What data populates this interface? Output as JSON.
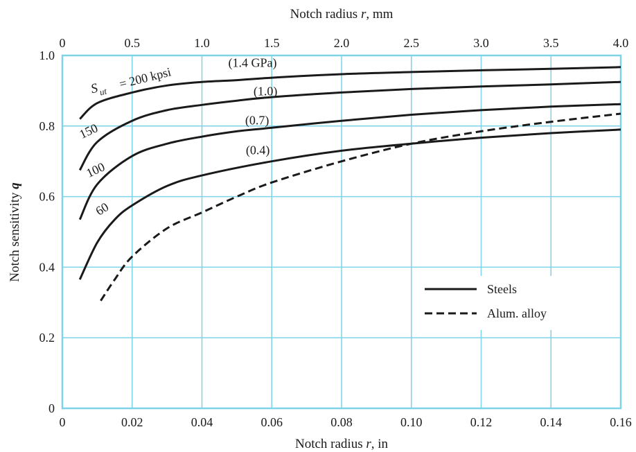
{
  "chart_data": {
    "type": "line",
    "xlabel_bottom_pre": "Notch radius ",
    "xlabel_bottom_var": "r",
    "xlabel_bottom_post": ", in",
    "xlabel_top_pre": "Notch radius ",
    "xlabel_top_var": "r",
    "xlabel_top_post": ", mm",
    "ylabel_pre": "Notch sensitivity ",
    "ylabel_var": "q",
    "xlim": [
      0,
      0.16
    ],
    "ylim": [
      0,
      1.0
    ],
    "x2lim": [
      0,
      4.0
    ],
    "x_ticks": [
      "0",
      "0.02",
      "0.04",
      "0.06",
      "0.08",
      "0.10",
      "0.12",
      "0.14",
      "0.16"
    ],
    "x2_ticks": [
      "0",
      "0.5",
      "1.0",
      "1.5",
      "2.0",
      "2.5",
      "3.0",
      "3.5",
      "4.0"
    ],
    "y_ticks": [
      "0",
      "0.2",
      "0.4",
      "0.6",
      "0.8",
      "1.0"
    ],
    "grid": true,
    "grid_color": "#7dd3e8",
    "series": [
      {
        "name": "200 kpsi",
        "style": "solid",
        "x": [
          0.005,
          0.01,
          0.02,
          0.03,
          0.04,
          0.05,
          0.06,
          0.08,
          0.1,
          0.12,
          0.14,
          0.16
        ],
        "y": [
          0.82,
          0.865,
          0.895,
          0.915,
          0.925,
          0.93,
          0.937,
          0.947,
          0.953,
          0.958,
          0.962,
          0.967
        ]
      },
      {
        "name": "150",
        "style": "solid",
        "x": [
          0.005,
          0.01,
          0.02,
          0.03,
          0.04,
          0.05,
          0.06,
          0.08,
          0.1,
          0.12,
          0.14,
          0.16
        ],
        "y": [
          0.675,
          0.755,
          0.815,
          0.845,
          0.86,
          0.872,
          0.882,
          0.895,
          0.905,
          0.912,
          0.918,
          0.925
        ]
      },
      {
        "name": "100",
        "style": "solid",
        "x": [
          0.005,
          0.01,
          0.02,
          0.03,
          0.04,
          0.05,
          0.06,
          0.08,
          0.1,
          0.12,
          0.14,
          0.16
        ],
        "y": [
          0.535,
          0.635,
          0.715,
          0.75,
          0.77,
          0.785,
          0.795,
          0.815,
          0.832,
          0.845,
          0.855,
          0.862
        ]
      },
      {
        "name": "60",
        "style": "solid",
        "x": [
          0.005,
          0.01,
          0.015,
          0.02,
          0.03,
          0.04,
          0.06,
          0.08,
          0.1,
          0.12,
          0.14,
          0.16
        ],
        "y": [
          0.365,
          0.47,
          0.535,
          0.575,
          0.63,
          0.66,
          0.7,
          0.73,
          0.75,
          0.767,
          0.78,
          0.79
        ]
      },
      {
        "name": "Alum. alloy",
        "style": "dashed",
        "x": [
          0.011,
          0.015,
          0.02,
          0.03,
          0.04,
          0.05,
          0.06,
          0.08,
          0.1,
          0.12,
          0.14,
          0.16
        ],
        "y": [
          0.305,
          0.365,
          0.43,
          0.51,
          0.555,
          0.6,
          0.64,
          0.7,
          0.75,
          0.785,
          0.812,
          0.835
        ]
      }
    ],
    "curve_labels": [
      {
        "text": "= 200 kpsi",
        "x": 0.024,
        "y": 0.925,
        "angle": -14
      },
      {
        "text": "150",
        "x": 0.008,
        "y": 0.775,
        "angle": -25
      },
      {
        "text": "100",
        "x": 0.01,
        "y": 0.665,
        "angle": -25
      },
      {
        "text": "60",
        "x": 0.012,
        "y": 0.555,
        "angle": -32
      },
      {
        "text": "(1.4 GPa)",
        "x": 0.0545,
        "y": 0.968,
        "angle": 0
      },
      {
        "text": "(1.0)",
        "x": 0.0582,
        "y": 0.887,
        "angle": 0
      },
      {
        "text": "(0.7)",
        "x": 0.0558,
        "y": 0.805,
        "angle": 0
      },
      {
        "text": "(0.4)",
        "x": 0.056,
        "y": 0.72,
        "angle": 0
      }
    ],
    "s_ut_symbol": "S",
    "s_ut_subscript": "ut",
    "legend": {
      "placement": "lower-right",
      "items": [
        {
          "label": "Steels",
          "style": "solid"
        },
        {
          "label": "Alum. alloy",
          "style": "dashed"
        }
      ]
    }
  }
}
